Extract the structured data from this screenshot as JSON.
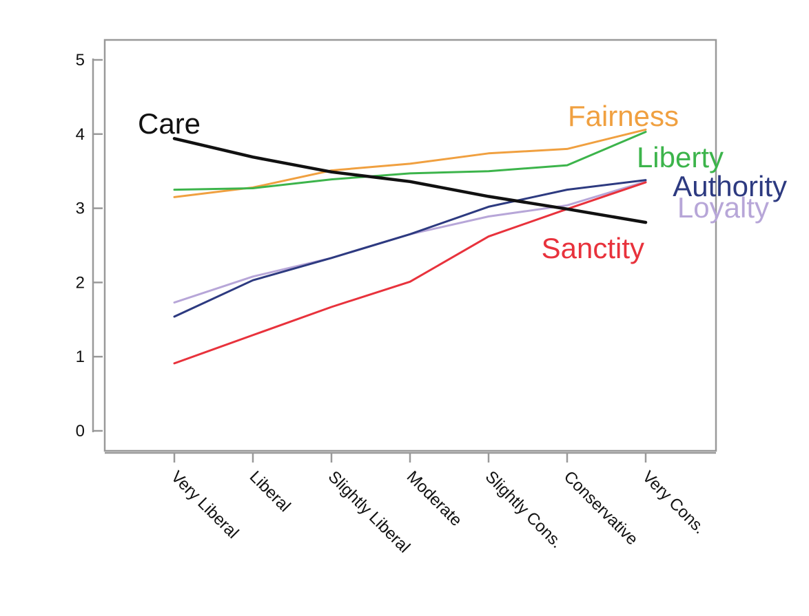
{
  "chart_data": {
    "type": "line",
    "title": "",
    "xlabel": "",
    "ylabel": "",
    "ylim": [
      0,
      5
    ],
    "yticks": [
      0,
      1,
      2,
      3,
      4,
      5
    ],
    "grid": false,
    "categories": [
      "Very Liberal",
      "Liberal",
      "Slightly Liberal",
      "Moderate",
      "Slightly Cons.",
      "Conservative",
      "Very Cons."
    ],
    "series": [
      {
        "name": "Care",
        "color": "#111111",
        "values": [
          3.94,
          3.69,
          3.49,
          3.36,
          3.16,
          2.99,
          2.81
        ]
      },
      {
        "name": "Fairness",
        "color": "#f0a040",
        "values": [
          3.15,
          3.28,
          3.51,
          3.6,
          3.74,
          3.8,
          4.06
        ]
      },
      {
        "name": "Liberty",
        "color": "#3cb44b",
        "values": [
          3.25,
          3.27,
          3.39,
          3.47,
          3.5,
          3.58,
          4.03
        ]
      },
      {
        "name": "Authority",
        "color": "#2d3a80",
        "values": [
          1.54,
          2.03,
          2.33,
          2.65,
          3.02,
          3.25,
          3.38
        ]
      },
      {
        "name": "Loyalty",
        "color": "#b7a6d8",
        "values": [
          1.73,
          2.08,
          2.33,
          2.65,
          2.89,
          3.04,
          3.36
        ]
      },
      {
        "name": "Sanctity",
        "color": "#e8323c",
        "values": [
          0.91,
          1.29,
          1.67,
          2.01,
          2.62,
          2.99,
          3.35
        ]
      }
    ]
  }
}
